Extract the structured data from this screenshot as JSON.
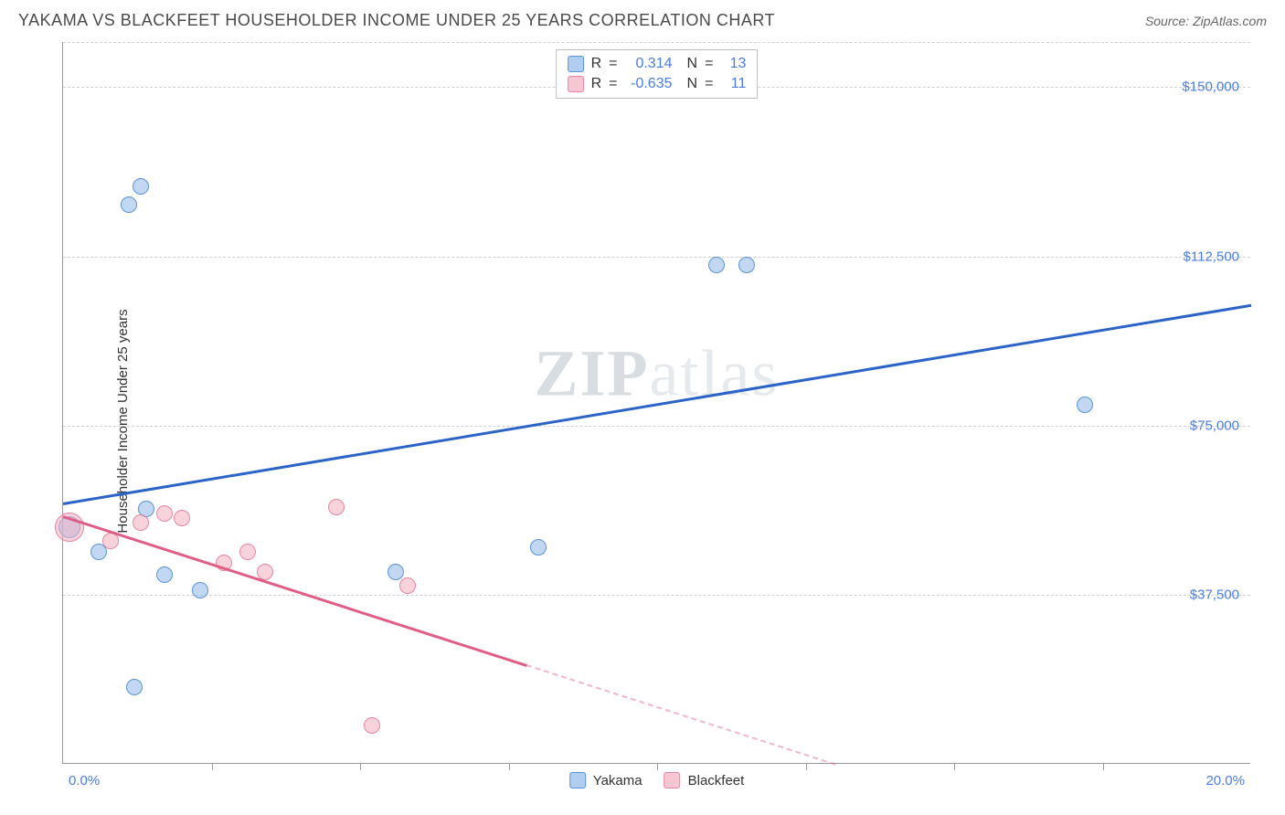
{
  "title": "YAKAMA VS BLACKFEET HOUSEHOLDER INCOME UNDER 25 YEARS CORRELATION CHART",
  "source": "Source: ZipAtlas.com",
  "watermark": {
    "bold": "ZIP",
    "light": "atlas"
  },
  "chart": {
    "type": "scatter",
    "ylabel": "Householder Income Under 25 years",
    "xlim": [
      0,
      20
    ],
    "ylim": [
      0,
      160000
    ],
    "x_tick_labels": {
      "min": "0.0%",
      "max": "20.0%"
    },
    "x_minor_ticks": [
      2.5,
      5.0,
      7.5,
      10.0,
      12.5,
      15.0,
      17.5
    ],
    "y_gridlines": [
      {
        "value": 37500,
        "label": "$37,500"
      },
      {
        "value": 75000,
        "label": "$75,000"
      },
      {
        "value": 112500,
        "label": "$112,500"
      },
      {
        "value": 150000,
        "label": "$150,000"
      },
      {
        "value": 160000,
        "label": ""
      }
    ],
    "background_color": "#ffffff",
    "grid_color": "#d0d0d0",
    "marker_radius": 9,
    "series": [
      {
        "name": "Yakama",
        "color_fill": "rgba(144,184,232,0.55)",
        "color_stroke": "#5a94d8",
        "trend_color": "#2c63c9",
        "R": "0.314",
        "N": "13",
        "points": [
          {
            "x": 0.1,
            "y": 52500,
            "r": 12
          },
          {
            "x": 0.6,
            "y": 47000
          },
          {
            "x": 1.1,
            "y": 124000
          },
          {
            "x": 1.3,
            "y": 128000
          },
          {
            "x": 1.4,
            "y": 56500
          },
          {
            "x": 1.7,
            "y": 42000
          },
          {
            "x": 1.2,
            "y": 17000
          },
          {
            "x": 2.3,
            "y": 38500
          },
          {
            "x": 5.6,
            "y": 42500
          },
          {
            "x": 8.0,
            "y": 48000
          },
          {
            "x": 11.0,
            "y": 110500
          },
          {
            "x": 11.5,
            "y": 110500
          },
          {
            "x": 17.2,
            "y": 79500
          }
        ],
        "trend": {
          "x1": 0,
          "y1": 58000,
          "x2": 20,
          "y2": 102000
        }
      },
      {
        "name": "Blackfeet",
        "color_fill": "rgba(244,174,192,0.55)",
        "color_stroke": "#e685a3",
        "trend_color": "#e05e85",
        "R": "-0.635",
        "N": "11",
        "points": [
          {
            "x": 0.1,
            "y": 52500,
            "r": 16
          },
          {
            "x": 0.8,
            "y": 49500
          },
          {
            "x": 1.3,
            "y": 53500
          },
          {
            "x": 1.7,
            "y": 55500
          },
          {
            "x": 2.0,
            "y": 54500
          },
          {
            "x": 2.7,
            "y": 44500
          },
          {
            "x": 3.1,
            "y": 47000
          },
          {
            "x": 3.4,
            "y": 42500
          },
          {
            "x": 4.6,
            "y": 57000
          },
          {
            "x": 5.2,
            "y": 8500
          },
          {
            "x": 5.8,
            "y": 39500
          }
        ],
        "trend": {
          "x1": 0,
          "y1": 55000,
          "x2": 7.8,
          "y2": 22000
        },
        "trend_extend": {
          "x1": 7.8,
          "y1": 22000,
          "x2": 13.0,
          "y2": 0
        }
      }
    ],
    "legend_top_labels": {
      "R": "R",
      "eq": "=",
      "N": "N"
    },
    "legend_bottom": [
      {
        "name": "Yakama",
        "series": "a"
      },
      {
        "name": "Blackfeet",
        "series": "b"
      }
    ]
  }
}
